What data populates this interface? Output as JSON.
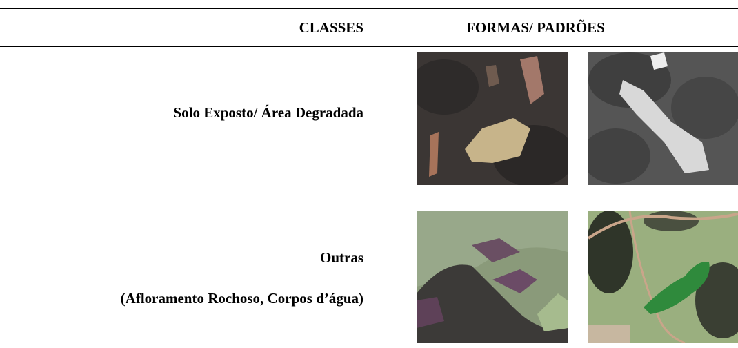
{
  "table": {
    "header": [
      "CLASSES",
      "FORMAS/ PADRÕES"
    ],
    "rows": [
      [
        "Solo Exposto/ Área Degradada"
      ],
      [
        "Outras",
        "(Afloramento Rochoso, Corpos d’água)"
      ]
    ]
  }
}
